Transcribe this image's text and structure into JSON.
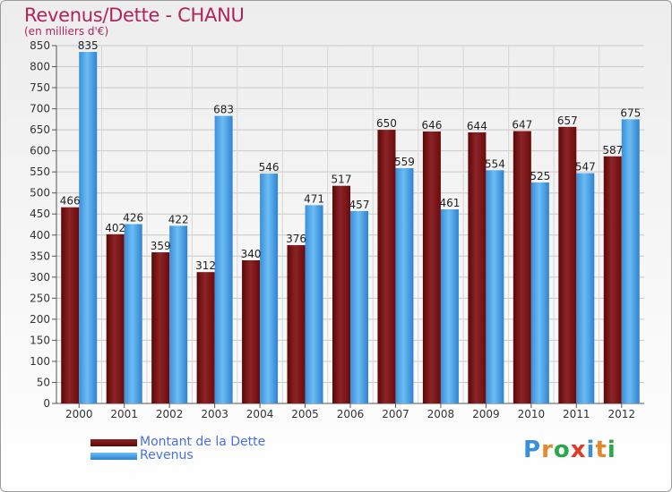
{
  "chart_data": {
    "type": "bar",
    "title": "Revenus/Dette - CHANU",
    "subtitle": "(en milliers d'€)",
    "categories": [
      "2000",
      "2001",
      "2002",
      "2003",
      "2004",
      "2005",
      "2006",
      "2007",
      "2008",
      "2009",
      "2010",
      "2011",
      "2012"
    ],
    "series": [
      {
        "name": "Montant de la Dette",
        "color": "#7a0f10",
        "values": [
          466,
          402,
          359,
          312,
          340,
          376,
          517,
          650,
          646,
          644,
          647,
          657,
          587
        ]
      },
      {
        "name": "Revenus",
        "color": "#4aa3e8",
        "values": [
          835,
          426,
          422,
          683,
          546,
          471,
          457,
          559,
          461,
          554,
          525,
          547,
          675
        ]
      }
    ],
    "ylim": [
      0,
      850
    ],
    "ytick_step": 50,
    "ytick_labels": [
      "0",
      "50",
      "100",
      "150",
      "200",
      "250",
      "300",
      "350",
      "400",
      "450",
      "500",
      "550",
      "600",
      "650",
      "700",
      "750",
      "800",
      "850"
    ],
    "grid": true,
    "legend_position": "bottom-left"
  },
  "logo": {
    "letters": [
      {
        "ch": "P",
        "color": "#3b8fd6"
      },
      {
        "ch": "r",
        "color": "#e8862a"
      },
      {
        "ch": "o",
        "color": "#2aa84a"
      },
      {
        "ch": "x",
        "color": "#e03a2a"
      },
      {
        "ch": "i",
        "color": "#3b8fd6"
      },
      {
        "ch": "t",
        "color": "#e8862a"
      },
      {
        "ch": "i",
        "color": "#2aa84a"
      }
    ]
  }
}
